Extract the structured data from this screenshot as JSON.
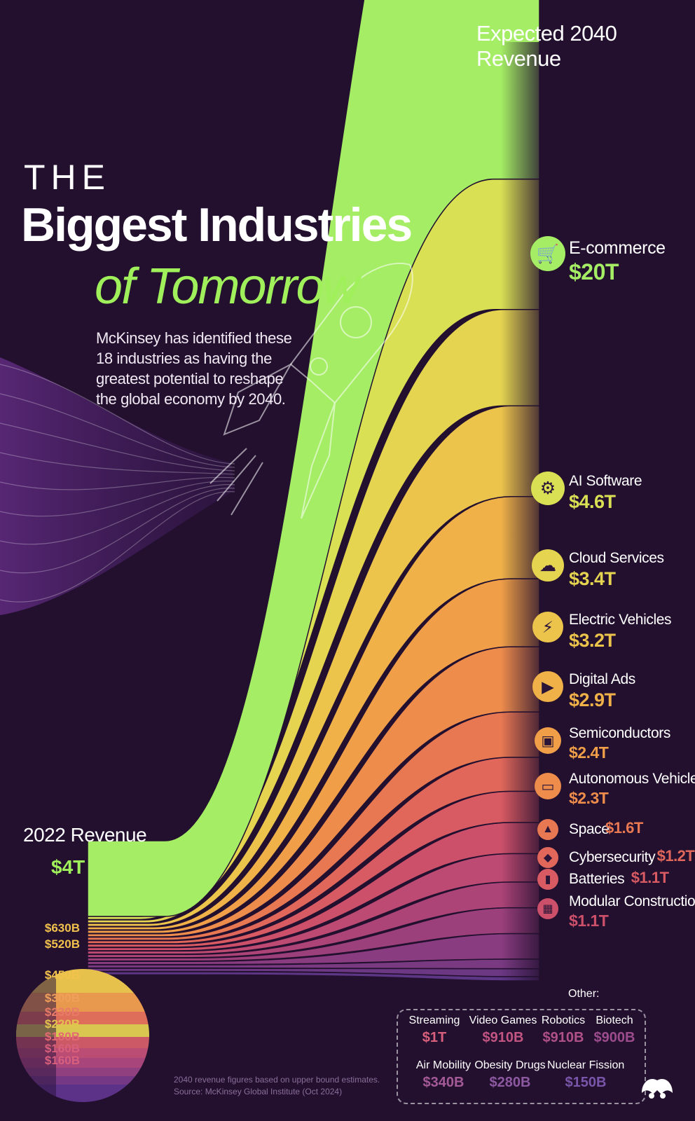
{
  "header": {
    "right_label": "Expected 2040 Revenue",
    "title_the": "THE",
    "title_main": "Biggest Industries",
    "title_sub": "of Tomorrow",
    "intro": "McKinsey has identified these 18 industries as having the greatest potential to reshape the global economy by 2040."
  },
  "left_axis": {
    "label": "2022 Revenue",
    "top_value": "$4T",
    "values": [
      "$630B",
      "$520B",
      "$450B",
      "$300B",
      "$230B",
      "$220B",
      "$180B",
      "$160B",
      "$160B"
    ]
  },
  "other": {
    "title": "Other:",
    "items": [
      {
        "name": "Streaming",
        "value": "$1T"
      },
      {
        "name": "Video Games",
        "value": "$910B"
      },
      {
        "name": "Robotics",
        "value": "$910B"
      },
      {
        "name": "Biotech",
        "value": "$900B"
      },
      {
        "name": "Air Mobility",
        "value": "$340B"
      },
      {
        "name": "Obesity Drugs",
        "value": "$280B"
      },
      {
        "name": "Nuclear Fission",
        "value": "$150B"
      }
    ]
  },
  "footnote": {
    "line1": "2040 revenue figures based on upper bound estimates.",
    "line2": "Source: McKinsey Global Institute (Oct 2024)"
  },
  "chart_data": {
    "type": "area",
    "x": [
      "2022",
      "2040"
    ],
    "units": "USD",
    "series": [
      {
        "name": "E-commerce",
        "label_2040": "$20T",
        "value_2022": 4000,
        "value_2040": 20000,
        "color": "#a4ed64",
        "icon": "shopping-cart-icon"
      },
      {
        "name": "AI Software",
        "label_2040": "$4.6T",
        "value_2040": 4600,
        "color": "#d9e054",
        "icon": "robot-icon"
      },
      {
        "name": "Cloud Services",
        "label_2040": "$3.4T",
        "value_2040": 3400,
        "color": "#e4d450",
        "icon": "cloud-icon"
      },
      {
        "name": "Electric Vehicles",
        "label_2040": "$3.2T",
        "value_2040": 3200,
        "color": "#ecc44c",
        "icon": "lightning-icon"
      },
      {
        "name": "Digital Ads",
        "label_2040": "$2.9T",
        "value_2040": 2900,
        "color": "#f0b248",
        "icon": "megaphone-icon"
      },
      {
        "name": "Semiconductors",
        "label_2040": "$2.4T",
        "value_2040": 2400,
        "color": "#f09f48",
        "icon": "chip-icon"
      },
      {
        "name": "Autonomous Vehicles",
        "label_2040": "$2.3T",
        "value_2040": 2300,
        "color": "#ee8c4c",
        "icon": "car-icon"
      },
      {
        "name": "Space",
        "label_2040": "$1.6T",
        "value_2040": 1600,
        "color": "#e87852",
        "icon": "rocket-icon"
      },
      {
        "name": "Cybersecurity",
        "label_2040": "$1.2T",
        "value_2040": 1200,
        "color": "#e0675a",
        "icon": "shield-icon"
      },
      {
        "name": "Batteries",
        "label_2040": "$1.1T",
        "value_2040": 1100,
        "color": "#d85a62",
        "icon": "battery-icon"
      },
      {
        "name": "Modular Construction",
        "label_2040": "$1.1T",
        "value_2040": 1100,
        "color": "#cc506a",
        "icon": "building-icon"
      },
      {
        "name": "Streaming",
        "label_2040": "$1T",
        "value_2040": 1000,
        "color": "#bd4a72"
      },
      {
        "name": "Video Games",
        "label_2040": "$910B",
        "value_2040": 910,
        "color": "#ad4478"
      },
      {
        "name": "Robotics",
        "label_2040": "$910B",
        "value_2040": 910,
        "color": "#9c407c"
      },
      {
        "name": "Biotech",
        "label_2040": "$900B",
        "value_2040": 900,
        "color": "#8a3c80"
      },
      {
        "name": "Air Mobility",
        "label_2040": "$340B",
        "value_2040": 340,
        "color": "#7a3a82"
      },
      {
        "name": "Obesity Drugs",
        "label_2040": "$280B",
        "value_2040": 280,
        "color": "#6c3884"
      },
      {
        "name": "Nuclear Fission",
        "label_2040": "$150B",
        "value_2040": 150,
        "color": "#5e3686"
      }
    ]
  }
}
